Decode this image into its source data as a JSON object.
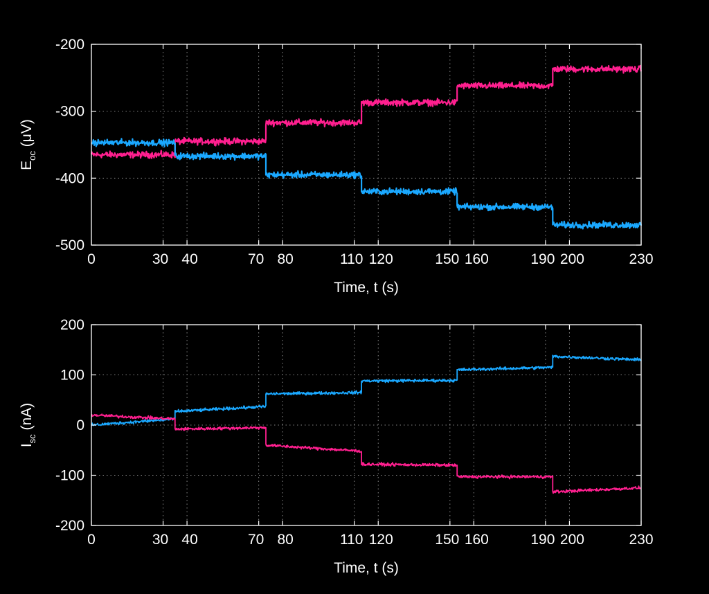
{
  "chart_data": [
    {
      "type": "line",
      "xlabel": "Time, t (s)",
      "ylabel_main": "E",
      "ylabel_sub": "oc",
      "ylabel_unit": " (μV)",
      "xlim": [
        0,
        230
      ],
      "ylim": [
        -500,
        -200
      ],
      "y_reversed": true,
      "xticks": [
        0,
        30,
        40,
        70,
        80,
        110,
        120,
        150,
        160,
        190,
        200,
        230
      ],
      "yticks": [
        -200,
        -300,
        -400,
        -500
      ],
      "grid": true,
      "series": [
        {
          "color": "#ff1f8f",
          "noise": 4,
          "segments": [
            {
              "x0": 0,
              "x1": 35,
              "y": -365
            },
            {
              "x0": 35,
              "x1": 73,
              "y": -345
            },
            {
              "x0": 73,
              "x1": 113,
              "y": -317
            },
            {
              "x0": 113,
              "x1": 153,
              "y": -287
            },
            {
              "x0": 153,
              "x1": 193,
              "y": -262
            },
            {
              "x0": 193,
              "x1": 230,
              "y": -237
            }
          ]
        },
        {
          "color": "#1aa8ff",
          "noise": 4,
          "segments": [
            {
              "x0": 0,
              "x1": 35,
              "y": -347
            },
            {
              "x0": 35,
              "x1": 73,
              "y": -367
            },
            {
              "x0": 73,
              "x1": 113,
              "y": -395
            },
            {
              "x0": 113,
              "x1": 153,
              "y": -420
            },
            {
              "x0": 153,
              "x1": 193,
              "y": -443
            },
            {
              "x0": 193,
              "x1": 230,
              "y": -470
            }
          ]
        }
      ]
    },
    {
      "type": "line",
      "xlabel": "Time, t (s)",
      "ylabel_main": "I",
      "ylabel_sub": "sc",
      "ylabel_unit": " (nA)",
      "xlim": [
        0,
        230
      ],
      "ylim": [
        -200,
        200
      ],
      "y_reversed": false,
      "xticks": [
        0,
        30,
        40,
        70,
        80,
        110,
        120,
        150,
        160,
        190,
        200,
        230
      ],
      "yticks": [
        200,
        100,
        0,
        -100,
        -200
      ],
      "grid": true,
      "series": [
        {
          "color": "#1aa8ff",
          "noise": 2.5,
          "segments": [
            {
              "x0": 0,
              "x1": 35,
              "y0": 0,
              "y1": 12
            },
            {
              "x0": 35,
              "x1": 73,
              "y0": 27,
              "y1": 37
            },
            {
              "x0": 73,
              "x1": 113,
              "y0": 62,
              "y1": 65
            },
            {
              "x0": 113,
              "x1": 153,
              "y0": 88,
              "y1": 89
            },
            {
              "x0": 153,
              "x1": 193,
              "y0": 110,
              "y1": 115
            },
            {
              "x0": 193,
              "x1": 230,
              "y0": 137,
              "y1": 130
            }
          ]
        },
        {
          "color": "#ff1f8f",
          "noise": 2.5,
          "segments": [
            {
              "x0": 0,
              "x1": 35,
              "y0": 20,
              "y1": 12
            },
            {
              "x0": 35,
              "x1": 73,
              "y0": -8,
              "y1": -5
            },
            {
              "x0": 73,
              "x1": 113,
              "y0": -40,
              "y1": -52
            },
            {
              "x0": 113,
              "x1": 153,
              "y0": -78,
              "y1": -80
            },
            {
              "x0": 153,
              "x1": 193,
              "y0": -103,
              "y1": -103
            },
            {
              "x0": 193,
              "x1": 230,
              "y0": -133,
              "y1": -125
            }
          ]
        }
      ]
    }
  ]
}
